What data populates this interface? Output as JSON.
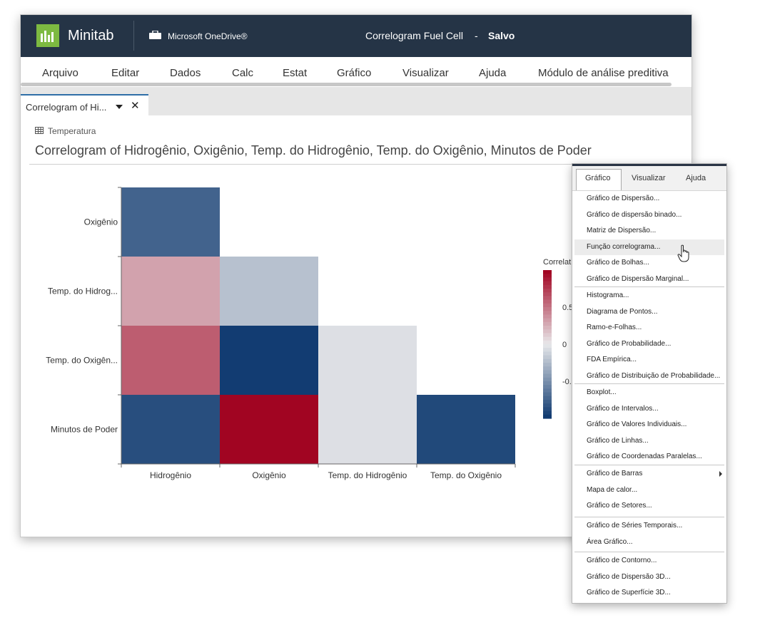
{
  "titlebar": {
    "app_name": "Minitab",
    "cloud_label": "Microsoft OneDrive®",
    "doc_title": "Correlogram Fuel Cell",
    "separator": "-",
    "status": "Salvo",
    "brand_color": "#7dba41",
    "bar_color": "#253446"
  },
  "menu": [
    "Arquivo",
    "Editar",
    "Dados",
    "Calc",
    "Estat",
    "Gráfico",
    "Visualizar",
    "Ajuda",
    "Módulo de análise preditiva"
  ],
  "tab": {
    "label": "Correlogram of Hi..."
  },
  "worksheet_label": "Temperatura",
  "chart_data": {
    "type": "heatmap",
    "title": "Correlogram of Hidrogênio, Oxigênio, Temp. do Hidrogênio, Temp. do Oxigênio, Minutos de Poder",
    "x_categories": [
      "Hidrogênio",
      "Oxigênio",
      "Temp. do Hidrogênio",
      "Temp. do Oxigênio"
    ],
    "y_categories": [
      "Oxigênio",
      "Temp. do Hidrog...",
      "Temp. do Oxigên...",
      "Minutos de Poder"
    ],
    "cells": [
      {
        "row": 0,
        "col": 0,
        "value": -0.75
      },
      {
        "row": 1,
        "col": 0,
        "value": 0.3
      },
      {
        "row": 1,
        "col": 1,
        "value": -0.22
      },
      {
        "row": 2,
        "col": 0,
        "value": 0.6
      },
      {
        "row": 2,
        "col": 1,
        "value": -0.97
      },
      {
        "row": 2,
        "col": 2,
        "value": -0.05
      },
      {
        "row": 3,
        "col": 0,
        "value": -0.87
      },
      {
        "row": 3,
        "col": 1,
        "value": 0.98
      },
      {
        "row": 3,
        "col": 2,
        "value": -0.05
      },
      {
        "row": 3,
        "col": 3,
        "value": -0.9
      }
    ],
    "legend": {
      "title": "Correlat",
      "ticks": [
        "0.5",
        "0",
        "-0."
      ],
      "range": [
        -1,
        1
      ]
    }
  },
  "dropdown": {
    "tabs": [
      "Gráfico",
      "Visualizar",
      "Ajuda"
    ],
    "groups": [
      [
        "Gráfico de Dispersão...",
        "Gráfico de dispersão binado...",
        "Matriz de Dispersão...",
        "Função correlograma...",
        "Gráfico de Bolhas...",
        "Gráfico de Dispersão Marginal..."
      ],
      [
        "Histograma...",
        "Diagrama de Pontos...",
        "Ramo-e-Folhas...",
        "Gráfico de Probabilidade...",
        "FDA Empírica...",
        "Gráfico de Distribuição de Probabilidade..."
      ],
      [
        "Boxplot...",
        "Gráfico de Intervalos...",
        "Gráfico de Valores Individuais...",
        "Gráfico de Linhas...",
        "Gráfico de Coordenadas Paralelas..."
      ],
      [
        "Gráfico de Barras",
        "Mapa de calor...",
        "Gráfico de Setores..."
      ],
      [
        "Gráfico de Séries Temporais...",
        "Área Gráfico..."
      ],
      [
        "Gráfico de Contorno...",
        "Gráfico de Dispersão 3D...",
        "Gráfico de Superfície 3D..."
      ]
    ],
    "highlighted": "Função correlograma...",
    "submenu_item": "Gráfico de Barras"
  }
}
